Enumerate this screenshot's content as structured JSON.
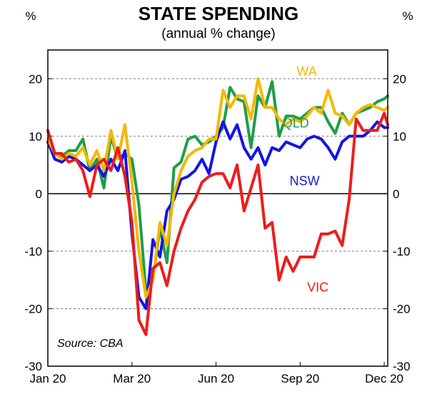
{
  "chart_data": {
    "type": "line",
    "title": "STATE SPENDING",
    "subtitle": "(annual % change)",
    "ylabel_left": "%",
    "ylabel_right": "%",
    "ylim": [
      -30,
      25
    ],
    "yticks": [
      -30,
      -20,
      -10,
      0,
      10,
      20
    ],
    "ytick_labels": [
      "-30",
      "-20",
      "-10",
      "0",
      "10",
      "20"
    ],
    "xlim": [
      0,
      48.5
    ],
    "xticks": [
      {
        "label": "Jan 20",
        "x": 0
      },
      {
        "label": "Mar 20",
        "x": 12
      },
      {
        "label": "Jun 20",
        "x": 24
      },
      {
        "label": "Sep 20",
        "x": 36
      },
      {
        "label": "Dec 20",
        "x": 48
      }
    ],
    "source": "Source: CBA",
    "series": [
      {
        "name": "QLD",
        "color": "#1e9e4a",
        "label_at": [
          33.5,
          11.5
        ],
        "x": [
          0,
          1,
          2,
          3,
          4,
          5,
          6,
          7,
          8,
          9,
          10,
          11,
          12,
          13,
          14,
          15,
          16,
          17,
          18,
          19,
          20,
          21,
          22,
          23,
          24,
          25,
          26,
          27,
          28,
          29,
          30,
          31,
          32,
          33,
          34,
          35,
          36,
          37,
          38,
          39,
          40,
          41,
          42,
          43,
          44,
          45,
          46,
          47,
          48,
          48.5
        ],
        "values": [
          9,
          7,
          6.5,
          7.5,
          7.5,
          9.5,
          4,
          6,
          1,
          10,
          6,
          7,
          6,
          -2,
          -17,
          -15,
          -6,
          -12,
          4.5,
          5.5,
          9.5,
          10,
          8.5,
          9,
          10,
          11.5,
          18.5,
          16.5,
          16,
          8,
          17,
          15,
          19.5,
          10,
          13.5,
          13.5,
          13,
          14,
          15,
          15,
          12.5,
          10.5,
          14,
          12,
          14,
          14.5,
          15,
          16,
          16.5,
          17
        ]
      },
      {
        "name": "NSW",
        "color": "#1414e6",
        "label_at": [
          34.5,
          1.5
        ],
        "x": [
          0,
          1,
          2,
          3,
          4,
          5,
          6,
          7,
          8,
          9,
          10,
          11,
          12,
          13,
          14,
          15,
          16,
          17,
          18,
          19,
          20,
          21,
          22,
          23,
          24,
          25,
          26,
          27,
          28,
          29,
          30,
          31,
          32,
          33,
          34,
          35,
          36,
          37,
          38,
          39,
          40,
          41,
          42,
          43,
          44,
          45,
          46,
          47,
          48,
          48.5
        ],
        "values": [
          9,
          6,
          5.5,
          6.5,
          6,
          5,
          4,
          5,
          3,
          6,
          4,
          7.5,
          -7,
          -18,
          -20,
          -8,
          -11,
          -3,
          -1,
          2.5,
          3,
          4,
          6,
          3.5,
          9,
          12.5,
          9.5,
          12,
          8,
          6,
          8,
          5,
          8,
          7.5,
          9,
          8.5,
          8,
          9.5,
          10,
          9.5,
          8,
          6,
          9,
          10,
          10,
          10,
          11,
          12.5,
          11.5,
          11.5
        ]
      },
      {
        "name": "WA",
        "color": "#f5b800",
        "label_at": [
          35.5,
          20.5
        ],
        "x": [
          0,
          1,
          2,
          3,
          4,
          5,
          6,
          7,
          8,
          9,
          10,
          11,
          12,
          13,
          14,
          15,
          16,
          17,
          18,
          19,
          20,
          21,
          22,
          23,
          24,
          25,
          26,
          27,
          28,
          29,
          30,
          31,
          32,
          33,
          34,
          35,
          36,
          37,
          38,
          39,
          40,
          41,
          42,
          43,
          44,
          45,
          46,
          47,
          48,
          48.5
        ],
        "values": [
          9.5,
          7,
          6,
          7,
          6.5,
          8,
          5,
          7.5,
          4,
          11,
          6,
          12,
          2,
          -10,
          -18,
          -15,
          -5,
          -9,
          0,
          4,
          6.5,
          7.5,
          8,
          9.5,
          9.5,
          18,
          15,
          17,
          17,
          13,
          20,
          15,
          15,
          13,
          12,
          13,
          12.5,
          13.5,
          15,
          14,
          18,
          14,
          13.5,
          12,
          14,
          15,
          15.5,
          15,
          14.5,
          15
        ]
      },
      {
        "name": "VIC",
        "color": "#ee1c1c",
        "label_at": [
          37,
          -17
        ],
        "x": [
          0,
          1,
          2,
          3,
          4,
          5,
          6,
          7,
          8,
          9,
          10,
          11,
          12,
          13,
          14,
          15,
          16,
          17,
          18,
          19,
          20,
          21,
          22,
          23,
          24,
          25,
          26,
          27,
          28,
          29,
          30,
          31,
          32,
          33,
          34,
          35,
          36,
          37,
          38,
          39,
          40,
          41,
          42,
          43,
          44,
          45,
          46,
          47,
          48,
          48.5
        ],
        "values": [
          11,
          7,
          7,
          5.5,
          6,
          4,
          -0.5,
          5,
          6,
          4,
          8,
          3,
          -5,
          -22,
          -24.5,
          -13,
          -12,
          -16,
          -10,
          -6,
          -3,
          -1,
          2,
          3,
          3.5,
          3.5,
          1,
          5,
          -3,
          1,
          5,
          -6,
          -5,
          -15,
          -11,
          -13.5,
          -11,
          -11,
          -11,
          -7,
          -7,
          -6.5,
          -9,
          -1,
          13,
          11,
          11,
          11,
          14,
          12
        ]
      }
    ]
  }
}
